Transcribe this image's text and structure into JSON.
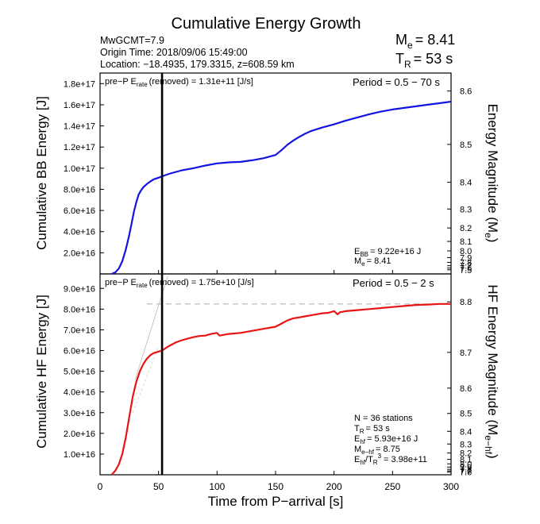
{
  "header": {
    "title": "Cumulative Energy Growth",
    "line1": "MwGCMT=7.9",
    "line2": "Origin Time: 2018/09/06 15:49:00",
    "line3": "Location: −18.4935, 179.3315, z=608.59 km",
    "me_sym": "M",
    "me_sub": "e",
    "me_val": "= 8.41",
    "tr_sym": "T",
    "tr_sub": "R",
    "tr_val": "= 53 s"
  },
  "chart_data": [
    {
      "type": "line",
      "panel": "top",
      "ylabel": "Cumulative BB Energy [J]",
      "ylabel_right": "Energy Magnitude (M",
      "ylabel_right_sub": "e",
      "ylabel_right_end": ")",
      "ylim": [
        0,
        1.9e+17
      ],
      "xlim": [
        0,
        300
      ],
      "yticks": [
        "2.0e+16",
        "4.0e+16",
        "6.0e+16",
        "8.0e+16",
        "1.0e+17",
        "1.2e+17",
        "1.4e+17",
        "1.6e+17",
        "1.8e+17"
      ],
      "right_ticks": [
        "7.5",
        "7.6",
        "7.7",
        "7.8",
        "7.9",
        "8.0",
        "8.1",
        "8.2",
        "8.3",
        "8.4",
        "8.5",
        "8.6"
      ],
      "prep_label": "pre−P E",
      "prep_sub": "rate",
      "prep_rest": "(removed) = 1.31e+11 [J/s]",
      "period": "Period = 0.5 − 70 s",
      "ann1_sym": "E",
      "ann1_sub": "BB",
      "ann1_val": "= 9.22e+16 J",
      "ann2_sym": "M",
      "ann2_sub": "e",
      "ann2_val": "= 8.41",
      "series": [
        {
          "color": "#1414e0",
          "x": [
            10,
            13,
            16,
            19,
            22,
            25,
            27,
            29,
            31,
            33,
            35,
            37,
            40,
            43,
            46,
            50,
            53,
            56,
            60,
            65,
            70,
            80,
            90,
            100,
            110,
            120,
            130,
            140,
            150,
            155,
            160,
            165,
            170,
            175,
            180,
            190,
            200,
            210,
            220,
            230,
            240,
            250,
            260,
            270,
            280,
            290,
            300
          ],
          "y": [
            0,
            1500000000000000.0,
            5000000000000000.0,
            1.2e+16,
            2.3e+16,
            3.7e+16,
            4.8e+16,
            5.9e+16,
            6.8e+16,
            7.5e+16,
            7.9e+16,
            8.2e+16,
            8.5e+16,
            8.75e+16,
            8.95e+16,
            9.1e+16,
            9.22e+16,
            9.35e+16,
            9.5e+16,
            9.65e+16,
            9.8e+16,
            1e+17,
            1.025e+17,
            1.045e+17,
            1.055e+17,
            1.06e+17,
            1.075e+17,
            1.095e+17,
            1.125e+17,
            1.17e+17,
            1.22e+17,
            1.26e+17,
            1.295e+17,
            1.325e+17,
            1.35e+17,
            1.385e+17,
            1.415e+17,
            1.45e+17,
            1.48e+17,
            1.51e+17,
            1.535e+17,
            1.555e+17,
            1.57e+17,
            1.585e+17,
            1.6e+17,
            1.615e+17,
            1.63e+17
          ]
        }
      ]
    },
    {
      "type": "line",
      "panel": "bottom",
      "ylabel": "Cumulative HF Energy [J]",
      "ylabel_right": "HF Energy Magnitude (M",
      "ylabel_right_sub": "e−hf",
      "ylabel_right_end": ")",
      "ylim": [
        0,
        9.7e+16
      ],
      "xlim": [
        0,
        300
      ],
      "yticks": [
        "1.0e+16",
        "2.0e+16",
        "3.0e+16",
        "4.0e+16",
        "5.0e+16",
        "6.0e+16",
        "7.0e+16",
        "8.0e+16",
        "9.0e+16"
      ],
      "right_ticks": [
        "7.6",
        "7.7",
        "7.8",
        "7.9",
        "8.0",
        "8.1",
        "8.2",
        "8.3",
        "8.4",
        "8.5",
        "8.6",
        "8.7",
        "8.8"
      ],
      "prep_label": "pre−P E",
      "prep_sub": "rate",
      "prep_rest": "(removed) = 1.75e+10 [J/s]",
      "period": "Period = 0.5 − 2 s",
      "ann_n": "N = 36 stations",
      "ann_tr_sym": "T",
      "ann_tr_sub": "R",
      "ann_tr_val": "= 53  s",
      "ann_ehf_sym": "E",
      "ann_ehf_sub": "hf",
      "ann_ehf_val": "= 5.93e+16 J",
      "ann_mhf_sym": "M",
      "ann_mhf_sub": "e−hf",
      "ann_mhf_val": "= 8.75",
      "ann_ratio_sym": "E",
      "ann_ratio_sub": "hf",
      "ann_ratio_mid": "/T",
      "ann_ratio_sub2": "R",
      "ann_ratio_sup": "3",
      "ann_ratio_val": "=  3.98e+11",
      "final_level": 8.25e+16,
      "series": [
        {
          "color": "#e81414",
          "x": [
            10,
            13,
            16,
            19,
            22,
            25,
            28,
            31,
            34,
            37,
            40,
            43,
            46,
            50,
            53,
            57,
            60,
            65,
            70,
            75,
            80,
            85,
            90,
            95,
            100,
            102,
            105,
            110,
            120,
            130,
            140,
            150,
            155,
            160,
            165,
            170,
            175,
            180,
            185,
            190,
            195,
            200,
            203,
            205,
            210,
            220,
            230,
            240,
            250,
            260,
            270,
            280,
            290,
            300
          ],
          "y": [
            0,
            2000000000000000.0,
            5000000000000000.0,
            1e+16,
            1.8e+16,
            2.8e+16,
            3.8e+16,
            4.5e+16,
            5e+16,
            5.35e+16,
            5.6e+16,
            5.78e+16,
            5.88e+16,
            5.95e+16,
            6e+16,
            6.15e+16,
            6.25e+16,
            6.4e+16,
            6.5e+16,
            6.58e+16,
            6.65e+16,
            6.7e+16,
            6.72e+16,
            6.8e+16,
            6.85e+16,
            6.72e+16,
            6.75e+16,
            6.8e+16,
            6.85e+16,
            6.95e+16,
            7.05e+16,
            7.15e+16,
            7.3e+16,
            7.45e+16,
            7.55e+16,
            7.6e+16,
            7.65e+16,
            7.7e+16,
            7.75e+16,
            7.8e+16,
            7.82e+16,
            7.9e+16,
            7.75e+16,
            7.85e+16,
            7.9e+16,
            7.95e+16,
            8e+16,
            8.05e+16,
            8.1e+16,
            8.15e+16,
            8.2e+16,
            8.22e+16,
            8.25e+16,
            8.25e+16
          ]
        }
      ]
    }
  ],
  "xaxis": {
    "label": "Time from P−arrival [s]",
    "ticks": [
      "0",
      "50",
      "100",
      "150",
      "200",
      "250",
      "300"
    ],
    "tr_value": 53
  }
}
